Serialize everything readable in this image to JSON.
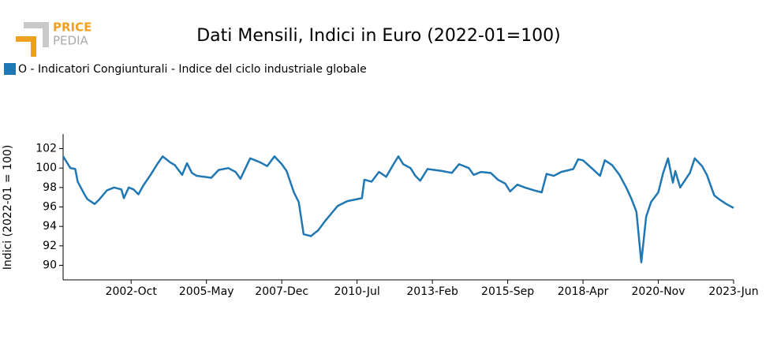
{
  "logo": {
    "top": "PRICE",
    "bottom": "PEDIA"
  },
  "chart_data": {
    "type": "line",
    "title": "Dati Mensili, Indici in Euro (2022-01=100)",
    "y_label": "Indici (2022-01 = 100)",
    "x": [
      "2000-06",
      "2000-09",
      "2000-11",
      "2000-12",
      "2001-03",
      "2001-04",
      "2001-07",
      "2001-09",
      "2001-12",
      "2002-03",
      "2002-06",
      "2002-07",
      "2002-09",
      "2002-11",
      "2003-01",
      "2003-03",
      "2003-06",
      "2003-09",
      "2003-11",
      "2004-02",
      "2004-04",
      "2004-07",
      "2004-09",
      "2004-11",
      "2005-01",
      "2005-07",
      "2005-10",
      "2006-02",
      "2006-05",
      "2006-07",
      "2006-11",
      "2007-03",
      "2007-06",
      "2007-09",
      "2007-12",
      "2008-02",
      "2008-05",
      "2008-07",
      "2008-09",
      "2008-12",
      "2009-03",
      "2009-06",
      "2009-08",
      "2009-11",
      "2010-03",
      "2010-09",
      "2010-10",
      "2011-01",
      "2011-04",
      "2011-07",
      "2011-10",
      "2011-12",
      "2012-02",
      "2012-05",
      "2012-07",
      "2012-09",
      "2012-12",
      "2013-03",
      "2013-06",
      "2013-10",
      "2014-01",
      "2014-05",
      "2014-07",
      "2014-10",
      "2015-02",
      "2015-05",
      "2015-08",
      "2015-10",
      "2016-01",
      "2016-04",
      "2016-08",
      "2016-11",
      "2017-01",
      "2017-04",
      "2017-07",
      "2017-12",
      "2018-02",
      "2018-04",
      "2018-08",
      "2018-11",
      "2019-01",
      "2019-04",
      "2019-07",
      "2019-10",
      "2019-12",
      "2020-02",
      "2020-04",
      "2020-06",
      "2020-08",
      "2020-11",
      "2021-01",
      "2021-03",
      "2021-05",
      "2021-06",
      "2021-08",
      "2021-12",
      "2022-02",
      "2022-05",
      "2022-07",
      "2022-10",
      "2022-12",
      "2023-03",
      "2023-06"
    ],
    "series": [
      {
        "name": "O - Indicatori Congiunturali - Indice del ciclo industriale globale",
        "color": "#1f77b4",
        "values": [
          101.2,
          100,
          99.9,
          98.6,
          97.2,
          96.8,
          96.3,
          96.8,
          97.7,
          98.0,
          97.8,
          96.9,
          98.0,
          97.8,
          97.3,
          98.2,
          99.3,
          100.5,
          101.2,
          100.6,
          100.3,
          99.3,
          100.5,
          99.5,
          99.2,
          99.0,
          99.8,
          100.0,
          99.6,
          98.9,
          101.0,
          100.6,
          100.2,
          101.2,
          100.4,
          99.7,
          97.5,
          96.5,
          93.2,
          93.0,
          93.6,
          94.6,
          95.2,
          96.1,
          96.6,
          96.9,
          98.8,
          98.6,
          99.6,
          99.1,
          100.4,
          101.2,
          100.4,
          100.0,
          99.2,
          98.7,
          99.9,
          99.8,
          99.7,
          99.5,
          100.4,
          100.0,
          99.3,
          99.6,
          99.5,
          98.8,
          98.4,
          97.6,
          98.3,
          98.0,
          97.7,
          97.5,
          99.4,
          99.2,
          99.6,
          99.9,
          100.9,
          100.8,
          99.9,
          99.2,
          100.8,
          100.3,
          99.3,
          97.9,
          96.8,
          95.5,
          90.3,
          95.0,
          96.5,
          97.5,
          99.5,
          101.0,
          98.5,
          99.7,
          98.0,
          99.5,
          101.0,
          100.2,
          99.3,
          97.2,
          96.8,
          96.3,
          95.9
        ]
      }
    ],
    "xlim": [
      "2000-06",
      "2023-06"
    ],
    "xticks": [
      "2002-10",
      "2005-05",
      "2007-12",
      "2010-07",
      "2013-02",
      "2015-09",
      "2018-04",
      "2020-11",
      "2023-06"
    ],
    "xtick_labels": [
      "2002-Oct",
      "2005-May",
      "2007-Dec",
      "2010-Jul",
      "2013-Feb",
      "2015-Sep",
      "2018-Apr",
      "2020-Nov",
      "2023-Jun"
    ],
    "ylim": [
      88.5,
      103.5
    ],
    "yticks": [
      90,
      92,
      94,
      96,
      98,
      100,
      102
    ]
  }
}
